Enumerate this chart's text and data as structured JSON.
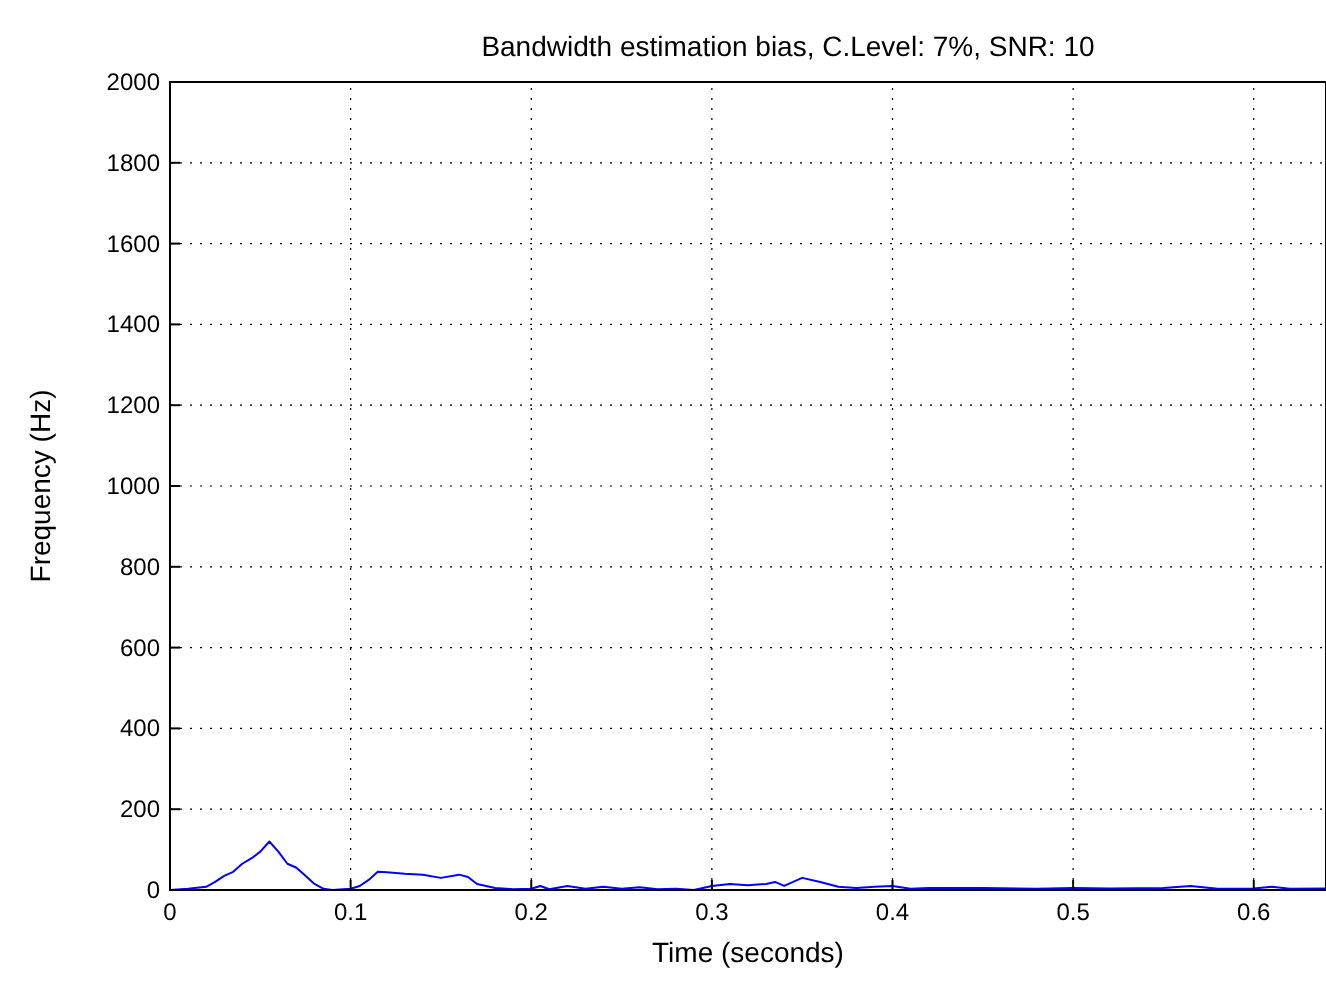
{
  "chart_data": {
    "type": "line",
    "title": "Bandwidth estimation bias, C.Level: 7%, SNR: 10",
    "xlabel": "Time (seconds)",
    "ylabel": "Frequency (Hz)",
    "x": [
      0,
      0.01,
      0.02,
      0.025,
      0.03,
      0.035,
      0.04,
      0.045,
      0.05,
      0.055,
      0.06,
      0.065,
      0.07,
      0.075,
      0.08,
      0.085,
      0.09,
      0.1,
      0.105,
      0.11,
      0.115,
      0.12,
      0.13,
      0.14,
      0.15,
      0.16,
      0.165,
      0.17,
      0.18,
      0.19,
      0.2,
      0.205,
      0.21,
      0.22,
      0.23,
      0.24,
      0.25,
      0.26,
      0.27,
      0.28,
      0.29,
      0.3,
      0.31,
      0.32,
      0.33,
      0.335,
      0.34,
      0.35,
      0.36,
      0.37,
      0.38,
      0.39,
      0.4,
      0.41,
      0.42,
      0.45,
      0.48,
      0.5,
      0.52,
      0.55,
      0.565,
      0.58,
      0.6,
      0.61,
      0.62,
      0.64
    ],
    "series": [
      {
        "color": "#0000ff",
        "values": [
          0,
          3,
          8,
          20,
          35,
          45,
          65,
          78,
          95,
          120,
          95,
          65,
          55,
          35,
          15,
          3,
          0,
          3,
          10,
          25,
          45,
          44,
          40,
          38,
          30,
          38,
          32,
          15,
          5,
          2,
          3,
          10,
          2,
          10,
          3,
          8,
          3,
          7,
          2,
          3,
          0,
          10,
          15,
          12,
          15,
          20,
          10,
          30,
          20,
          8,
          5,
          8,
          10,
          3,
          5,
          5,
          3,
          5,
          4,
          5,
          10,
          3,
          4,
          8,
          3,
          4
        ]
      }
    ],
    "xlim": [
      0,
      0.64
    ],
    "ylim": [
      0,
      2000
    ],
    "xticks": [
      0,
      0.1,
      0.2,
      0.3,
      0.4,
      0.5,
      0.6
    ],
    "yticks": [
      0,
      200,
      400,
      600,
      800,
      1000,
      1200,
      1400,
      1600,
      1800,
      2000
    ],
    "grid": true,
    "line_style": "solid"
  }
}
